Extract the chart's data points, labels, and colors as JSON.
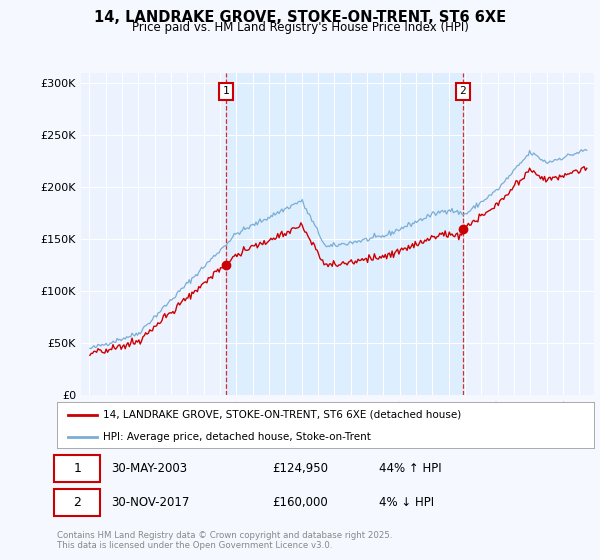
{
  "title": "14, LANDRAKE GROVE, STOKE-ON-TRENT, ST6 6XE",
  "subtitle": "Price paid vs. HM Land Registry's House Price Index (HPI)",
  "ylabel_ticks": [
    "£0",
    "£50K",
    "£100K",
    "£150K",
    "£200K",
    "£250K",
    "£300K"
  ],
  "ytick_vals": [
    0,
    50000,
    100000,
    150000,
    200000,
    250000,
    300000
  ],
  "ylim": [
    0,
    310000
  ],
  "sale1_year": 2003,
  "sale1_month": 5,
  "sale1_price": 124950,
  "sale1_date_str": "30-MAY-2003",
  "sale1_hpi_pct": "44% ↑ HPI",
  "sale2_year": 2017,
  "sale2_month": 11,
  "sale2_price": 160000,
  "sale2_date_str": "30-NOV-2017",
  "sale2_hpi_pct": "4% ↓ HPI",
  "line1_color": "#cc0000",
  "line2_color": "#7aadd4",
  "dot_color": "#cc0000",
  "shade_color": "#ddeeff",
  "legend1_label": "14, LANDRAKE GROVE, STOKE-ON-TRENT, ST6 6XE (detached house)",
  "legend2_label": "HPI: Average price, detached house, Stoke-on-Trent",
  "footer": "Contains HM Land Registry data © Crown copyright and database right 2025.\nThis data is licensed under the Open Government Licence v3.0.",
  "background_color": "#f5f8ff",
  "plot_bg_color": "#edf2ff",
  "grid_color": "#ffffff",
  "marker_box_color": "#cc0000"
}
